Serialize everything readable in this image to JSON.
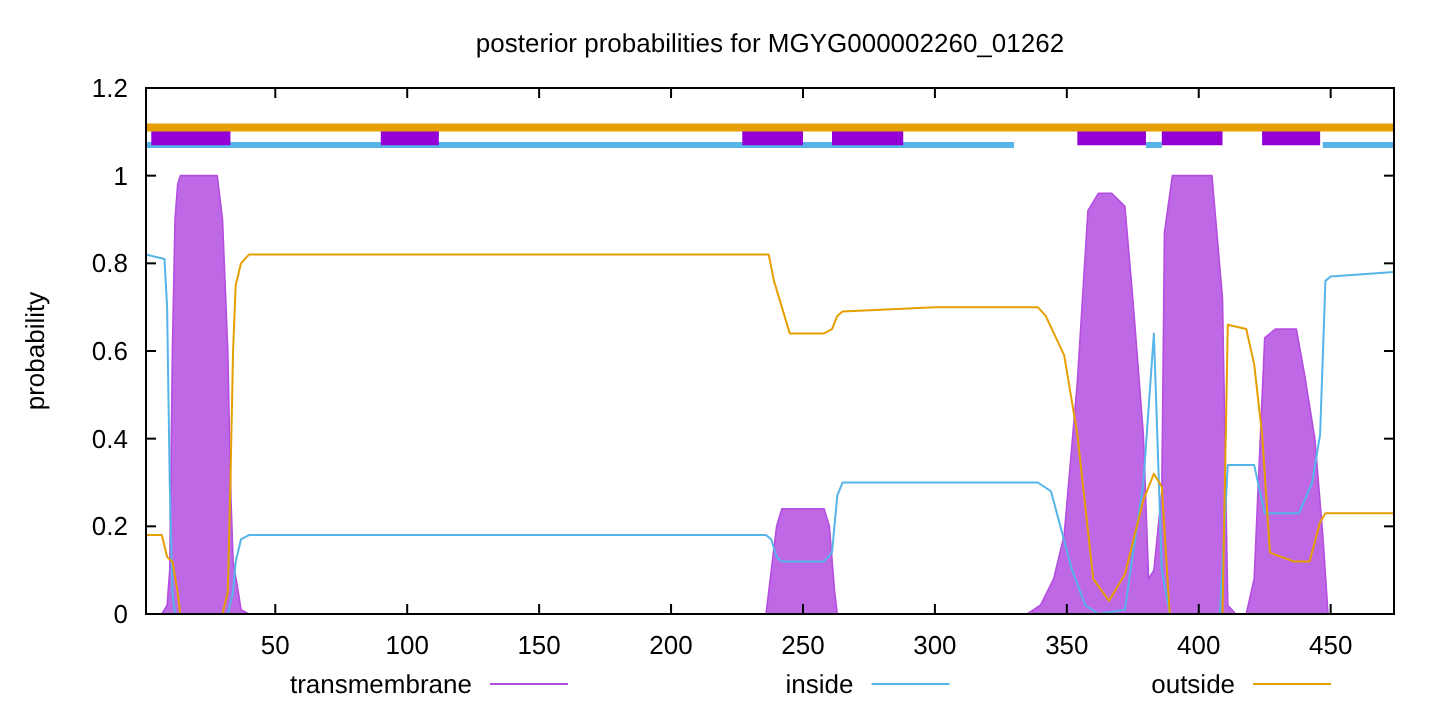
{
  "chart_data": {
    "type": "line",
    "title": "posterior probabilities for MGYG000002260_01262",
    "ylabel": "probability",
    "xlim": [
      1,
      474
    ],
    "ylim": [
      0,
      1.2
    ],
    "xticks": [
      50,
      100,
      150,
      200,
      250,
      300,
      350,
      400,
      450
    ],
    "yticks": [
      0,
      {
        "value": 0.2,
        "label": "0.2"
      },
      {
        "value": 0.4,
        "label": "0.4"
      },
      {
        "value": 0.6,
        "label": "0.6"
      },
      {
        "value": 0.8,
        "label": "0.8"
      },
      1,
      {
        "value": 1.2,
        "label": "1.2"
      }
    ],
    "grid": false,
    "legend": "bottom",
    "series": [
      {
        "name": "transmembrane",
        "type": "area",
        "color": "#b44ee0",
        "x": [
          1,
          7,
          9,
          10,
          11,
          12,
          13,
          14,
          28,
          30,
          32,
          33,
          34,
          36,
          37,
          40,
          236,
          238,
          240,
          242,
          258,
          260,
          262,
          263,
          300,
          335,
          340,
          345,
          349,
          354,
          358,
          362,
          367,
          372,
          375,
          379,
          381,
          383,
          386,
          387,
          390,
          405,
          409,
          411,
          414,
          418,
          421,
          425,
          429,
          437,
          440,
          444,
          447,
          449,
          474
        ],
        "values": [
          0,
          0,
          0.02,
          0.1,
          0.6,
          0.9,
          0.98,
          1,
          1,
          0.9,
          0.6,
          0.3,
          0.12,
          0.05,
          0.01,
          0,
          0,
          0.1,
          0.2,
          0.24,
          0.24,
          0.2,
          0.05,
          0,
          0,
          0,
          0.02,
          0.08,
          0.18,
          0.53,
          0.92,
          0.96,
          0.96,
          0.93,
          0.72,
          0.41,
          0.08,
          0.1,
          0.28,
          0.87,
          1,
          1,
          0.72,
          0.02,
          0,
          0,
          0.08,
          0.63,
          0.65,
          0.65,
          0.55,
          0.4,
          0.18,
          0,
          0
        ]
      },
      {
        "name": "inside",
        "color": "#56b4e9",
        "x": [
          1,
          8,
          9,
          10,
          11,
          12,
          32,
          34,
          35,
          37,
          40,
          236,
          238,
          240,
          242,
          258,
          261,
          263,
          265,
          300,
          339,
          344,
          352,
          357,
          362,
          372,
          379,
          383,
          386,
          389,
          408,
          411,
          421,
          425,
          438,
          443,
          446,
          448,
          450,
          474
        ],
        "values": [
          0.82,
          0.81,
          0.7,
          0.3,
          0.05,
          0,
          0,
          0.05,
          0.12,
          0.17,
          0.18,
          0.18,
          0.17,
          0.13,
          0.12,
          0.12,
          0.14,
          0.27,
          0.3,
          0.3,
          0.3,
          0.28,
          0.1,
          0.02,
          0,
          0.01,
          0.3,
          0.64,
          0.1,
          0,
          0,
          0.34,
          0.34,
          0.23,
          0.23,
          0.3,
          0.41,
          0.76,
          0.77,
          0.78
        ]
      },
      {
        "name": "outside",
        "color": "#e69f00",
        "x": [
          1,
          7,
          9,
          11,
          13,
          14,
          30,
          32,
          33,
          34,
          35,
          37,
          40,
          237,
          239,
          241,
          245,
          258,
          261,
          263,
          265,
          300,
          339,
          342,
          349,
          354,
          360,
          366,
          372,
          379,
          383,
          386,
          389,
          409,
          411,
          418,
          421,
          424,
          427,
          436,
          442,
          446,
          448,
          474
        ],
        "values": [
          0.18,
          0.18,
          0.13,
          0.12,
          0.05,
          0,
          0,
          0.05,
          0.3,
          0.6,
          0.75,
          0.8,
          0.82,
          0.82,
          0.76,
          0.72,
          0.64,
          0.64,
          0.65,
          0.68,
          0.69,
          0.7,
          0.7,
          0.68,
          0.59,
          0.41,
          0.08,
          0.03,
          0.09,
          0.26,
          0.32,
          0.29,
          0,
          0,
          0.66,
          0.65,
          0.57,
          0.41,
          0.14,
          0.12,
          0.12,
          0.21,
          0.23,
          0.23
        ]
      },
      {
        "color": "#56b4e9",
        "x": [
          1,
          330,
          331,
          380,
          386,
          387,
          447,
          474
        ],
        "values": [
          1.07,
          1.07,
          null,
          1.07,
          1.07,
          null,
          1.07,
          1.07
        ]
      },
      {
        "color": "#9400d3",
        "x": [
          3,
          33,
          34,
          90,
          112,
          113,
          227,
          250,
          251,
          261,
          288,
          289,
          354,
          380,
          381,
          386,
          409,
          410,
          424,
          446
        ],
        "values": [
          1.09,
          1.09,
          null,
          1.09,
          1.09,
          null,
          1.09,
          1.09,
          null,
          1.09,
          1.09,
          null,
          1.09,
          1.09,
          null,
          1.09,
          1.09,
          null,
          1.09,
          1.09
        ]
      },
      {
        "color": "#e69f00",
        "x": [
          1,
          474
        ],
        "values": [
          1.11,
          1.11
        ]
      }
    ]
  }
}
